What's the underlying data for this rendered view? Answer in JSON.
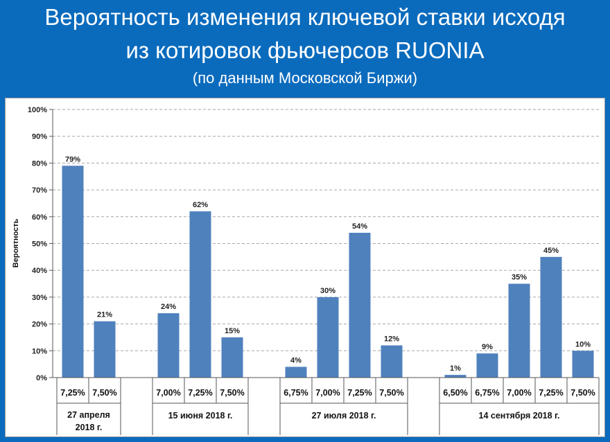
{
  "header": {
    "title_line1": "Вероятность изменения ключевой ставки исходя",
    "title_line2": "из котировок фьючерсов RUONIA",
    "subtitle": "(по данным Московской Биржи)"
  },
  "colors": {
    "background": "#0a6bbd",
    "bar": "#4f81bd",
    "grid": "#a6a6a6"
  },
  "chart_data": {
    "type": "bar",
    "title": "",
    "xlabel": "",
    "ylabel": "Вероятность",
    "ylim": [
      0,
      100
    ],
    "yticks": [
      "0%",
      "10%",
      "20%",
      "30%",
      "40%",
      "50%",
      "60%",
      "70%",
      "80%",
      "90%",
      "100%"
    ],
    "grid": true,
    "legend": "none",
    "groups": [
      {
        "label_lines": [
          "27 апреля",
          "2018 г."
        ],
        "categories": [
          "7,25%",
          "7,50%"
        ],
        "values": [
          79,
          21
        ],
        "value_labels": [
          "79%",
          "21%"
        ]
      },
      {
        "label_lines": [
          "15 июня 2018 г."
        ],
        "categories": [
          "7,00%",
          "7,25%",
          "7,50%"
        ],
        "values": [
          24,
          62,
          15
        ],
        "value_labels": [
          "24%",
          "62%",
          "15%"
        ]
      },
      {
        "label_lines": [
          "27 июля 2018 г."
        ],
        "categories": [
          "6,75%",
          "7,00%",
          "7,25%",
          "7,50%"
        ],
        "values": [
          4,
          30,
          54,
          12
        ],
        "value_labels": [
          "4%",
          "30%",
          "54%",
          "12%"
        ]
      },
      {
        "label_lines": [
          "14 сентября 2018 г."
        ],
        "categories": [
          "6,50%",
          "6,75%",
          "7,00%",
          "7,25%",
          "7,50%"
        ],
        "values": [
          1,
          9,
          35,
          45,
          10
        ],
        "value_labels": [
          "1%",
          "9%",
          "35%",
          "45%",
          "10%"
        ]
      }
    ]
  }
}
